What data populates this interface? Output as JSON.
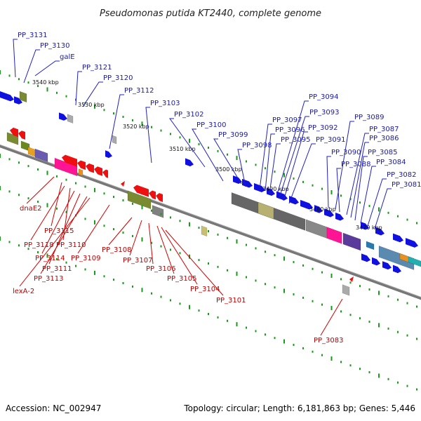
{
  "title": "Pseudomonas putida KT2440, complete genome",
  "footer": {
    "accession": "Accession: NC_002947",
    "summary": "Topology: circular; Length: 6,181,863 bp; Genes: 5,446"
  },
  "scale_labels": [
    "3540 kbp",
    "3530 kbp",
    "3520 kbp",
    "3510 kbp",
    "3500 kbp",
    "3490 kbp",
    "3480 kbp",
    "3470 kbp"
  ],
  "top_genes": [
    "PP_3131",
    "PP_3130",
    "galE",
    "PP_3121",
    "PP_3120",
    "PP_3112",
    "PP_3103",
    "PP_3102",
    "PP_3100",
    "PP_3099",
    "PP_3098",
    "PP_3097",
    "PP_3096",
    "PP_3095",
    "PP_3094",
    "PP_3093",
    "PP_3092",
    "PP_3091",
    "PP_3090",
    "PP_3089",
    "PP_3088",
    "PP_3087",
    "PP_3086",
    "PP_3085",
    "PP_3084",
    "PP_3082",
    "PP_3081"
  ],
  "bottom_genes": [
    "dnaE2",
    "PP_3115",
    "PP_3118",
    "PP_3110",
    "PP_3114",
    "PP_3111",
    "PP_3113",
    "lexA-2",
    "PP_3109",
    "PP_3108",
    "PP_3107",
    "PP_3106",
    "PP_3105",
    "PP_3104",
    "PP_3101",
    "PP_3083"
  ],
  "colors": {
    "forward_strand": "#1010e0",
    "reverse_strand": "#ee1010",
    "top_label": "#1a1aa8",
    "bottom_label": "#c00000",
    "backbone": "#777777",
    "tick": "#1a9a1a"
  }
}
